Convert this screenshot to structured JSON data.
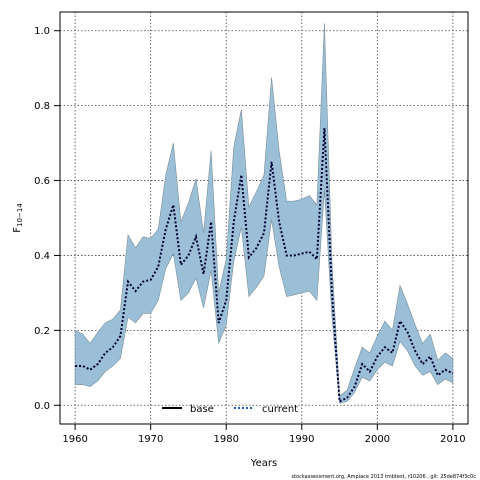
{
  "chart_data": {
    "type": "line",
    "xlabel": "Years",
    "ylabel_main": "F",
    "ylabel_sub": "10−14",
    "xlim": [
      1958,
      2012
    ],
    "ylim": [
      -0.05,
      1.05
    ],
    "xticks": [
      1960,
      1970,
      1980,
      1990,
      2000,
      2010
    ],
    "yticks": [
      0.0,
      0.2,
      0.4,
      0.6,
      0.8,
      1.0
    ],
    "ytick_labels": [
      "0.0",
      "0.2",
      "0.4",
      "0.6",
      "0.8",
      "1.0"
    ],
    "grid": true,
    "band_color": "#9abfd6",
    "band_edge_color": "#7a8f9c",
    "current_color": "#000033",
    "x": [
      1960,
      1961,
      1962,
      1963,
      1964,
      1965,
      1966,
      1967,
      1968,
      1969,
      1970,
      1971,
      1972,
      1973,
      1974,
      1975,
      1976,
      1977,
      1978,
      1979,
      1980,
      1981,
      1982,
      1983,
      1984,
      1985,
      1986,
      1987,
      1988,
      1989,
      1990,
      1991,
      1992,
      1993,
      1994,
      1995,
      1996,
      1997,
      1998,
      1999,
      2000,
      2001,
      2002,
      2003,
      2004,
      2005,
      2006,
      2007,
      2008,
      2009,
      2010
    ],
    "series": [
      {
        "name": "current",
        "style": "dotted",
        "values": [
          0.105,
          0.105,
          0.095,
          0.11,
          0.14,
          0.155,
          0.185,
          0.33,
          0.305,
          0.33,
          0.335,
          0.37,
          0.47,
          0.535,
          0.375,
          0.4,
          0.45,
          0.35,
          0.49,
          0.22,
          0.28,
          0.49,
          0.615,
          0.395,
          0.42,
          0.46,
          0.65,
          0.49,
          0.4,
          0.4,
          0.405,
          0.41,
          0.39,
          0.74,
          0.3,
          0.01,
          0.02,
          0.05,
          0.11,
          0.09,
          0.13,
          0.155,
          0.14,
          0.225,
          0.195,
          0.145,
          0.11,
          0.13,
          0.08,
          0.095,
          0.085
        ]
      }
    ],
    "band": {
      "upper": [
        0.2,
        0.19,
        0.165,
        0.195,
        0.22,
        0.23,
        0.255,
        0.455,
        0.42,
        0.45,
        0.445,
        0.47,
        0.615,
        0.7,
        0.49,
        0.54,
        0.605,
        0.46,
        0.68,
        0.3,
        0.39,
        0.69,
        0.79,
        0.53,
        0.57,
        0.615,
        0.875,
        0.68,
        0.545,
        0.545,
        0.55,
        0.56,
        0.535,
        1.02,
        0.38,
        0.025,
        0.04,
        0.1,
        0.155,
        0.14,
        0.185,
        0.225,
        0.2,
        0.32,
        0.27,
        0.215,
        0.165,
        0.19,
        0.12,
        0.14,
        0.125
      ],
      "lower": [
        0.055,
        0.055,
        0.05,
        0.065,
        0.09,
        0.105,
        0.125,
        0.235,
        0.22,
        0.245,
        0.245,
        0.28,
        0.365,
        0.405,
        0.28,
        0.3,
        0.34,
        0.26,
        0.36,
        0.165,
        0.215,
        0.385,
        0.475,
        0.29,
        0.315,
        0.345,
        0.495,
        0.37,
        0.29,
        0.295,
        0.3,
        0.305,
        0.28,
        0.575,
        0.235,
        0.005,
        0.01,
        0.035,
        0.075,
        0.065,
        0.095,
        0.115,
        0.105,
        0.17,
        0.145,
        0.105,
        0.08,
        0.09,
        0.055,
        0.07,
        0.06
      ]
    },
    "legend": {
      "position": "bottom-center",
      "entries": [
        {
          "label": "base",
          "style": "solid"
        },
        {
          "label": "current",
          "style": "dotted",
          "color": "#1a5fb4"
        }
      ]
    },
    "footnote": "stockassessment.org, Ampiace 2013 tmbtest, r10206 , git: 25de874f3c0c"
  }
}
